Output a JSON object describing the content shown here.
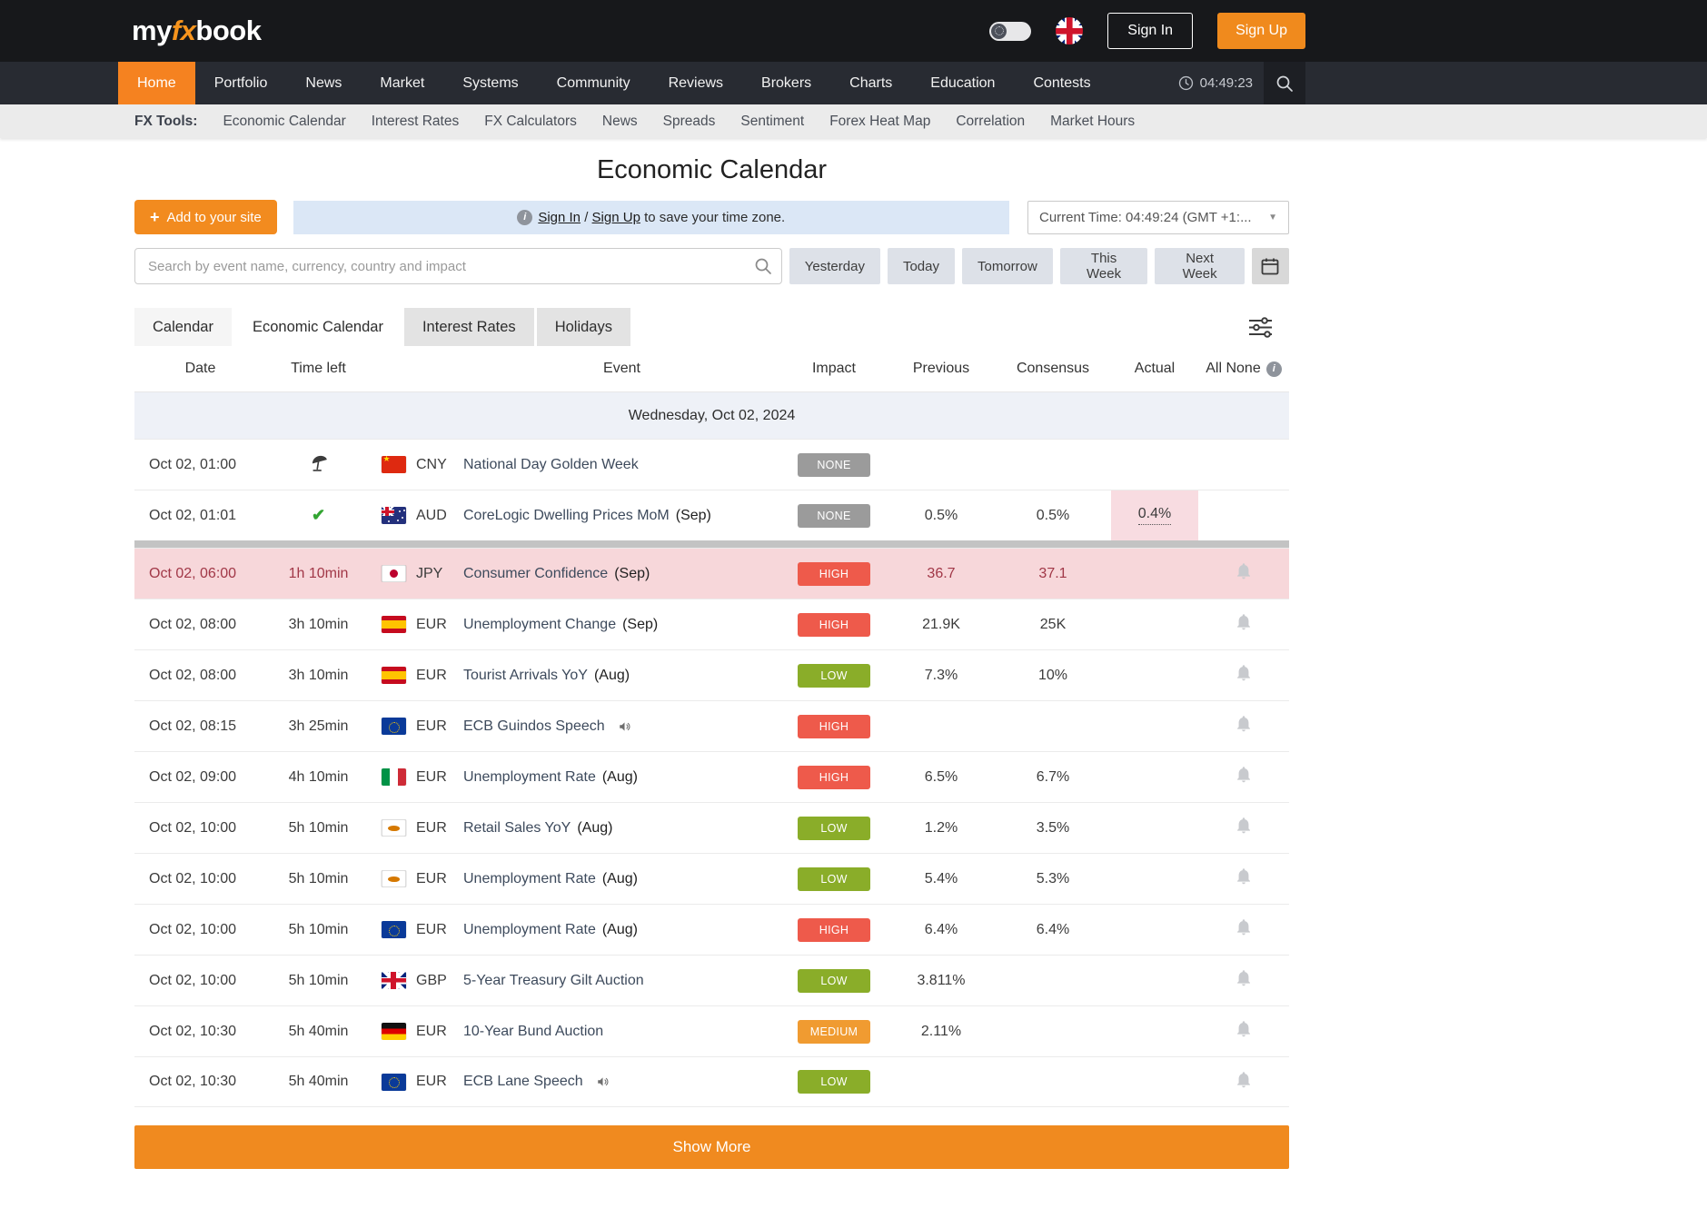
{
  "header": {
    "logo": {
      "part1": "my",
      "part2": "fx",
      "part3": "book"
    },
    "sign_in": "Sign In",
    "sign_up": "Sign Up"
  },
  "nav": {
    "items": [
      "Home",
      "Portfolio",
      "News",
      "Market",
      "Systems",
      "Community",
      "Reviews",
      "Brokers",
      "Charts",
      "Education",
      "Contests"
    ],
    "active": "Home",
    "time": "04:49:23"
  },
  "fx_tools": {
    "label": "FX Tools:",
    "links": [
      "Economic Calendar",
      "Interest Rates",
      "FX Calculators",
      "News",
      "Spreads",
      "Sentiment",
      "Forex Heat Map",
      "Correlation",
      "Market Hours"
    ]
  },
  "page": {
    "title": "Economic Calendar"
  },
  "toolbar": {
    "add_button": "Add to your site",
    "banner": {
      "sign_in": "Sign In",
      "separator": " / ",
      "sign_up": "Sign Up",
      "rest": " to save your time zone."
    },
    "current_time": "Current Time: 04:49:24  (GMT +1:..."
  },
  "search": {
    "placeholder": "Search by event name, currency, country and impact",
    "buttons": [
      "Yesterday",
      "Today",
      "Tomorrow",
      "This Week",
      "Next Week"
    ]
  },
  "tabs": {
    "items": [
      "Calendar",
      "Economic Calendar",
      "Interest Rates",
      "Holidays"
    ],
    "active": "Economic Calendar"
  },
  "table": {
    "headers": {
      "date": "Date",
      "time_left": "Time left",
      "event": "Event",
      "impact": "Impact",
      "previous": "Previous",
      "consensus": "Consensus",
      "actual": "Actual",
      "all_none": "All None"
    },
    "day": "Wednesday, Oct 02, 2024",
    "rows": [
      {
        "date": "Oct 02, 01:00",
        "marker": "holiday",
        "time_left": "",
        "flag": "cn",
        "currency": "CNY",
        "event": "National Day Golden Week",
        "suffix": "",
        "audio": false,
        "impact": "NONE",
        "previous": "",
        "consensus": "",
        "actual": "",
        "bell": false,
        "highlight": false,
        "divider_above": false,
        "actual_highlight": false
      },
      {
        "date": "Oct 02, 01:01",
        "marker": "check",
        "time_left": "",
        "flag": "au",
        "currency": "AUD",
        "event": "CoreLogic Dwelling Prices MoM",
        "suffix": "(Sep)",
        "audio": false,
        "impact": "NONE",
        "previous": "0.5%",
        "consensus": "0.5%",
        "actual": "0.4%",
        "bell": false,
        "highlight": false,
        "divider_above": false,
        "actual_highlight": true
      },
      {
        "date": "Oct 02, 06:00",
        "marker": "",
        "time_left": "1h 10min",
        "flag": "jp",
        "currency": "JPY",
        "event": "Consumer Confidence",
        "suffix": "(Sep)",
        "audio": false,
        "impact": "HIGH",
        "previous": "36.7",
        "consensus": "37.1",
        "actual": "",
        "bell": true,
        "highlight": true,
        "divider_above": true,
        "actual_highlight": false
      },
      {
        "date": "Oct 02, 08:00",
        "marker": "",
        "time_left": "3h 10min",
        "flag": "es",
        "currency": "EUR",
        "event": "Unemployment Change",
        "suffix": "(Sep)",
        "audio": false,
        "impact": "HIGH",
        "previous": "21.9K",
        "consensus": "25K",
        "actual": "",
        "bell": true,
        "highlight": false,
        "divider_above": false,
        "actual_highlight": false
      },
      {
        "date": "Oct 02, 08:00",
        "marker": "",
        "time_left": "3h 10min",
        "flag": "es",
        "currency": "EUR",
        "event": "Tourist Arrivals YoY",
        "suffix": "(Aug)",
        "audio": false,
        "impact": "LOW",
        "previous": "7.3%",
        "consensus": "10%",
        "actual": "",
        "bell": true,
        "highlight": false,
        "divider_above": false,
        "actual_highlight": false
      },
      {
        "date": "Oct 02, 08:15",
        "marker": "",
        "time_left": "3h 25min",
        "flag": "eu",
        "currency": "EUR",
        "event": "ECB Guindos Speech",
        "suffix": "",
        "audio": true,
        "impact": "HIGH",
        "previous": "",
        "consensus": "",
        "actual": "",
        "bell": true,
        "highlight": false,
        "divider_above": false,
        "actual_highlight": false
      },
      {
        "date": "Oct 02, 09:00",
        "marker": "",
        "time_left": "4h 10min",
        "flag": "it",
        "currency": "EUR",
        "event": "Unemployment Rate",
        "suffix": "(Aug)",
        "audio": false,
        "impact": "HIGH",
        "previous": "6.5%",
        "consensus": "6.7%",
        "actual": "",
        "bell": true,
        "highlight": false,
        "divider_above": false,
        "actual_highlight": false
      },
      {
        "date": "Oct 02, 10:00",
        "marker": "",
        "time_left": "5h 10min",
        "flag": "cy",
        "currency": "EUR",
        "event": "Retail Sales YoY",
        "suffix": "(Aug)",
        "audio": false,
        "impact": "LOW",
        "previous": "1.2%",
        "consensus": "3.5%",
        "actual": "",
        "bell": true,
        "highlight": false,
        "divider_above": false,
        "actual_highlight": false
      },
      {
        "date": "Oct 02, 10:00",
        "marker": "",
        "time_left": "5h 10min",
        "flag": "cy",
        "currency": "EUR",
        "event": "Unemployment Rate",
        "suffix": "(Aug)",
        "audio": false,
        "impact": "LOW",
        "previous": "5.4%",
        "consensus": "5.3%",
        "actual": "",
        "bell": true,
        "highlight": false,
        "divider_above": false,
        "actual_highlight": false
      },
      {
        "date": "Oct 02, 10:00",
        "marker": "",
        "time_left": "5h 10min",
        "flag": "eu",
        "currency": "EUR",
        "event": "Unemployment Rate",
        "suffix": "(Aug)",
        "audio": false,
        "impact": "HIGH",
        "previous": "6.4%",
        "consensus": "6.4%",
        "actual": "",
        "bell": true,
        "highlight": false,
        "divider_above": false,
        "actual_highlight": false
      },
      {
        "date": "Oct 02, 10:00",
        "marker": "",
        "time_left": "5h 10min",
        "flag": "gb",
        "currency": "GBP",
        "event": "5-Year Treasury Gilt Auction",
        "suffix": "",
        "audio": false,
        "impact": "LOW",
        "previous": "3.811%",
        "consensus": "",
        "actual": "",
        "bell": true,
        "highlight": false,
        "divider_above": false,
        "actual_highlight": false
      },
      {
        "date": "Oct 02, 10:30",
        "marker": "",
        "time_left": "5h 40min",
        "flag": "de",
        "currency": "EUR",
        "event": "10-Year Bund Auction",
        "suffix": "",
        "audio": false,
        "impact": "MEDIUM",
        "previous": "2.11%",
        "consensus": "",
        "actual": "",
        "bell": true,
        "highlight": false,
        "divider_above": false,
        "actual_highlight": false
      },
      {
        "date": "Oct 02, 10:30",
        "marker": "",
        "time_left": "5h 40min",
        "flag": "eu",
        "currency": "EUR",
        "event": "ECB Lane Speech",
        "suffix": "",
        "audio": true,
        "impact": "LOW",
        "previous": "",
        "consensus": "",
        "actual": "",
        "bell": true,
        "highlight": false,
        "divider_above": false,
        "actual_highlight": false
      }
    ]
  },
  "footer": {
    "show_more": "Show More"
  },
  "icons": {
    "plus": "+",
    "caret_down": "▼",
    "info": "i",
    "check": "✔"
  },
  "colors": {
    "accent_orange": "#f58220",
    "topbar": "#17181b",
    "navbar": "#282b32",
    "impact_high": "#ee5a4b",
    "impact_low": "#8aad29",
    "impact_medium": "#f09b31",
    "impact_none": "#9b9b9b",
    "highlight_row": "#f7d7da",
    "banner_blue": "#dbe7f6",
    "day_row": "#eef1f7"
  }
}
